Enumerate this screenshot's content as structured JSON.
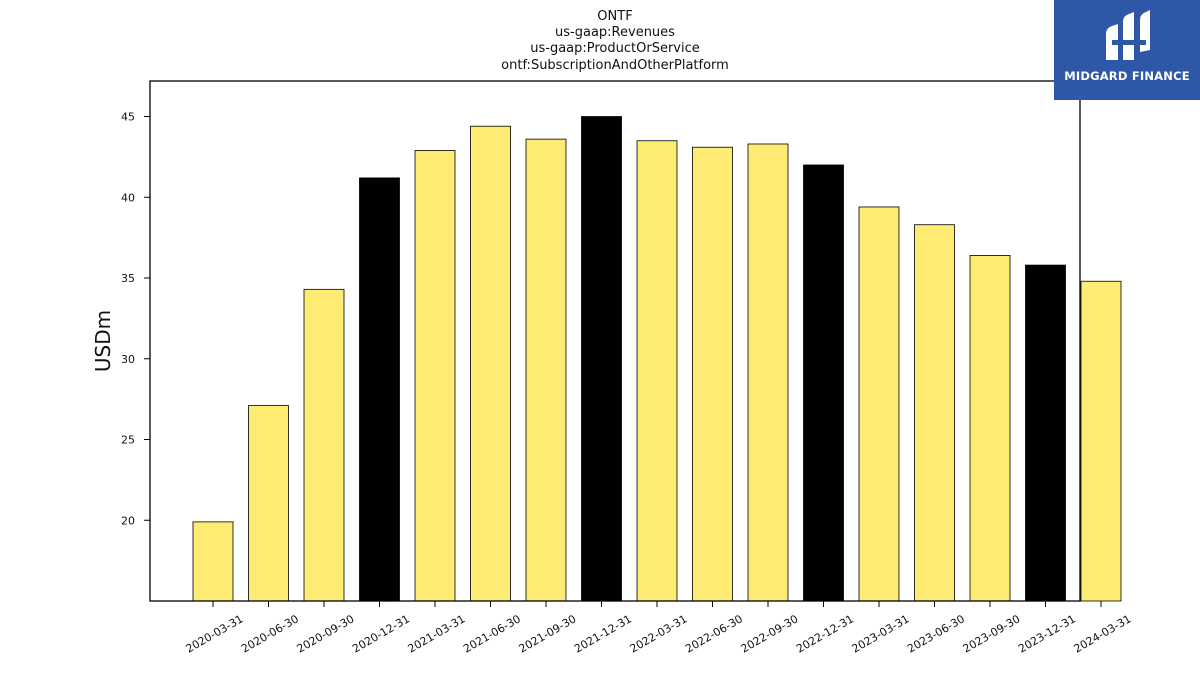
{
  "chart_data": {
    "type": "bar",
    "title_lines": [
      "ONTF",
      "us-gaap:Revenues",
      "us-gaap:ProductOrService",
      "ontf:SubscriptionAndOtherPlatform"
    ],
    "xlabel": "",
    "ylabel": "USDm",
    "ylim": [
      15,
      47.2
    ],
    "yticks": [
      20,
      25,
      30,
      35,
      40,
      45
    ],
    "categories": [
      "2020-03-31",
      "2020-06-30",
      "2020-09-30",
      "2020-12-31",
      "2021-03-31",
      "2021-06-30",
      "2021-09-30",
      "2021-12-31",
      "2022-03-31",
      "2022-06-30",
      "2022-09-30",
      "2022-12-31",
      "2023-03-31",
      "2023-06-30",
      "2023-09-30",
      "2023-12-31",
      "2024-03-31"
    ],
    "values": [
      19.9,
      27.1,
      34.3,
      41.2,
      42.9,
      44.4,
      43.6,
      45.0,
      43.5,
      43.1,
      43.3,
      42.0,
      39.4,
      38.3,
      36.4,
      35.8,
      34.8
    ],
    "bar_colors": [
      "#fdeb73",
      "#fdeb73",
      "#fdeb73",
      "#000000",
      "#fdeb73",
      "#fdeb73",
      "#fdeb73",
      "#000000",
      "#fdeb73",
      "#fdeb73",
      "#fdeb73",
      "#000000",
      "#fdeb73",
      "#fdeb73",
      "#fdeb73",
      "#000000",
      "#fdeb73"
    ],
    "grid": false,
    "legend": "none"
  },
  "logo": {
    "text": "MIDGARD FINANCE",
    "background": "#2f57a8",
    "icon": "midgard-logo-icon"
  }
}
